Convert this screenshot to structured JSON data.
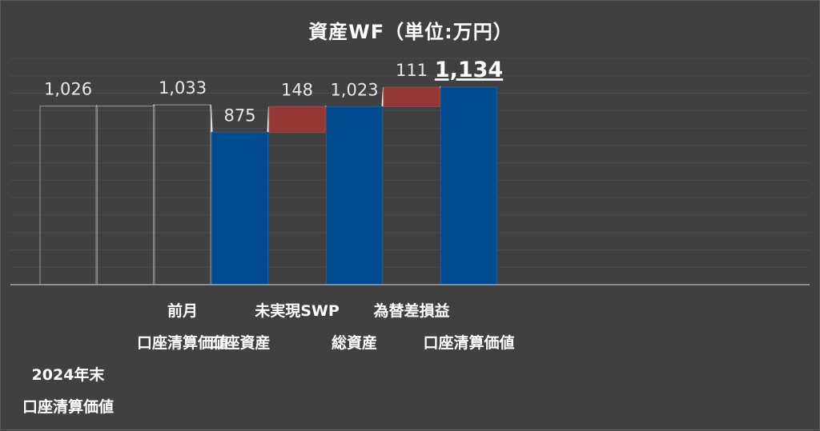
{
  "chart_data": {
    "type": "bar",
    "subtype": "waterfall",
    "title": "資産WF（単位:万円）",
    "xlabel": "",
    "ylabel": "",
    "ylim": [
      0,
      1300
    ],
    "grid": true,
    "legend": "none",
    "bars": [
      {
        "kind": "total",
        "value": 1026,
        "label": "1,026",
        "style": "outline",
        "category_lines": [
          "2024年末",
          "口座清算価値"
        ],
        "tier": 3
      },
      {
        "kind": "total",
        "value": 1026,
        "label": "",
        "style": "outline",
        "category_lines": [],
        "tier": 0
      },
      {
        "kind": "total",
        "value": 1033,
        "label": "1,033",
        "style": "outline",
        "category_lines": [
          "前月",
          "口座清算価値"
        ],
        "tier": 1
      },
      {
        "kind": "total",
        "value": 875,
        "label": "875",
        "style": "blue",
        "category_lines": [
          "口座資産"
        ],
        "tier": 2
      },
      {
        "kind": "delta",
        "base": 875,
        "value": 148,
        "label": "148",
        "style": "red",
        "category_lines": [
          "未実現SWP"
        ],
        "tier": 1
      },
      {
        "kind": "total",
        "value": 1023,
        "label": "1,023",
        "style": "blue",
        "category_lines": [
          "総資産"
        ],
        "tier": 2
      },
      {
        "kind": "delta",
        "base": 1023,
        "value": 111,
        "label": "111",
        "style": "red",
        "category_lines": [
          "為替差損益"
        ],
        "tier": 1
      },
      {
        "kind": "total",
        "value": 1134,
        "label": "1,134",
        "style": "blue",
        "emphasis": true,
        "category_lines": [
          "口座清算価値"
        ],
        "tier": 2
      }
    ]
  },
  "colors": {
    "background": "#404040",
    "blue": "#004a8f",
    "red": "#953735",
    "outline": "#8a8a8a",
    "connector": "#ffffff",
    "axis": "#a6a6a6"
  }
}
